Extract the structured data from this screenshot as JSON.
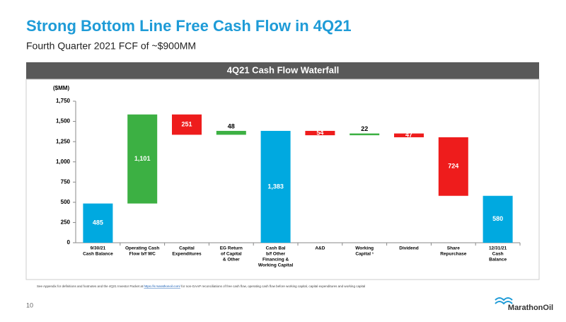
{
  "header": {
    "title": "Strong Bottom Line Free Cash Flow in 4Q21",
    "subtitle": "Fourth Quarter 2021 FCF of ~$900MM"
  },
  "chart_data": {
    "type": "waterfall",
    "title": "4Q21 Cash Flow Waterfall",
    "y_label": "($MM)",
    "categories": [
      [
        "9/30/21",
        "Cash Balance"
      ],
      [
        "Operating Cash",
        "Flow b/f WC"
      ],
      [
        "Capital",
        "Expenditures"
      ],
      [
        "EG Return",
        "of Capital",
        "& Other"
      ],
      [
        "Cash Bal",
        "b/f Other",
        "Financing &",
        "Working Capital"
      ],
      [
        "A&D"
      ],
      [
        "Working",
        "Capital ¹"
      ],
      [
        "Dividend"
      ],
      [
        "Share",
        "Repurchase"
      ],
      [
        "12/31/21",
        "Cash",
        "Balance"
      ]
    ],
    "values": [
      485,
      1101,
      -251,
      48,
      1383,
      -54,
      22,
      -47,
      -724,
      580
    ],
    "value_labels": [
      "485",
      "1,101",
      "251",
      "48",
      "1,383",
      "54",
      "22",
      "47",
      "724",
      "580"
    ],
    "total_bars": [
      0,
      4,
      9
    ],
    "colors": [
      "#00a9e0",
      "#3cb043",
      "#ee1c1c",
      "#3cb043",
      "#00a9e0",
      "#ee1c1c",
      "#3cb043",
      "#ee1c1c",
      "#ee1c1c",
      "#00a9e0"
    ],
    "ylim": [
      0,
      1750
    ],
    "yticks": [
      0,
      {
        "value": 250,
        "label": "250"
      },
      {
        "value": 500,
        "label": "500"
      },
      {
        "value": 750,
        "label": "750"
      },
      {
        "value": 1000,
        "label": "1,000"
      },
      {
        "value": 1250,
        "label": "1,250"
      },
      {
        "value": 1500,
        "label": "1,500"
      },
      {
        "value": 1750,
        "label": "1,750"
      }
    ]
  },
  "footer": {
    "note_before": "See Appendix for definitions and footnotes and the 4Q21 Investor Packet at ",
    "note_link": "https://ir.marathonoil.com/",
    "note_after": " for non-GAAP reconciliations of free cash flow, operating cash flow before working capital, capital expenditures and working capital",
    "page": "10",
    "logo": "MarathonOil"
  }
}
